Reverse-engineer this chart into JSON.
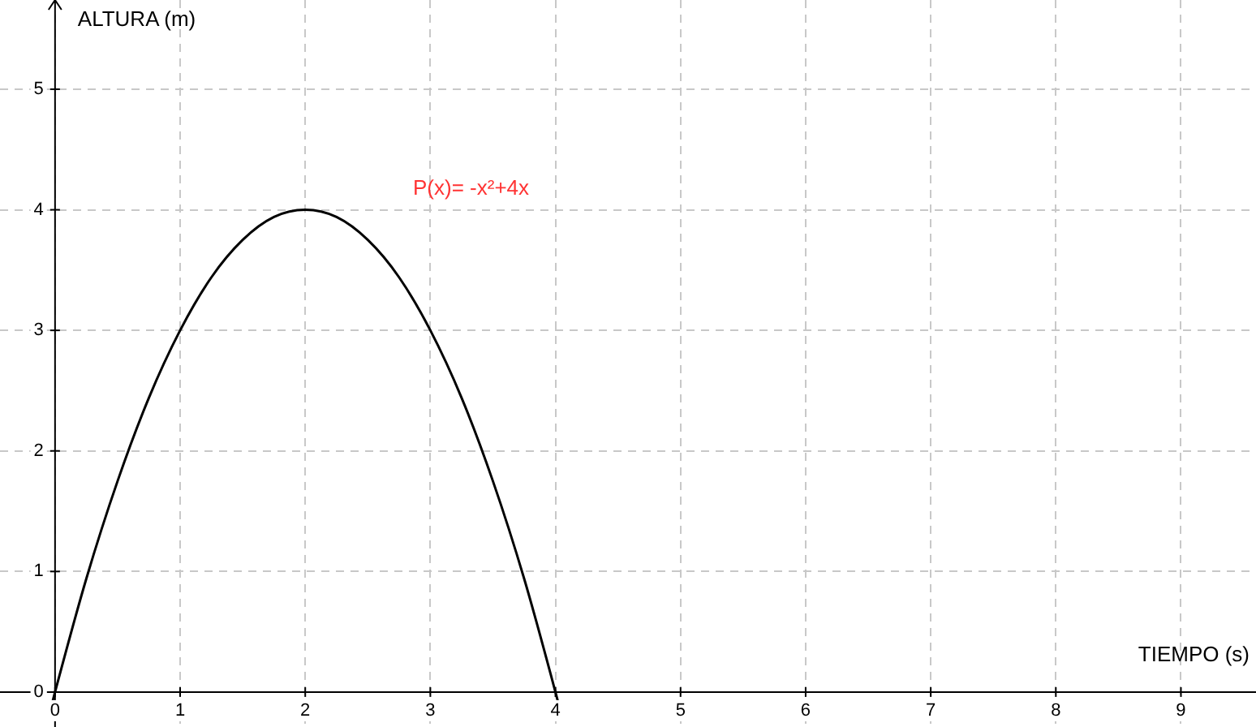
{
  "chart_data": {
    "type": "line",
    "xlabel": "TIEMPO (s)",
    "ylabel": "ALTURA (m)",
    "x": [
      -0.05,
      0,
      0.25,
      0.5,
      0.75,
      1,
      1.25,
      1.5,
      1.75,
      2,
      2.25,
      2.5,
      2.75,
      3,
      3.25,
      3.5,
      3.75,
      4,
      4.05
    ],
    "series": [
      {
        "color": "#000000",
        "values": [
          -0.2,
          0,
          0.94,
          1.75,
          2.44,
          3,
          3.44,
          3.75,
          3.94,
          4,
          3.94,
          3.75,
          3.44,
          3,
          2.44,
          1.75,
          0.94,
          0,
          -0.2
        ]
      }
    ],
    "annotations": [
      "P(x)= -x²+4x"
    ],
    "xlim": [
      -0.44,
      9.6
    ],
    "ylim": [
      -0.29,
      5.74
    ],
    "xticks": [
      0,
      1,
      2,
      3,
      4,
      5,
      6,
      7,
      8,
      9
    ],
    "yticks": [
      0,
      1,
      2,
      3,
      4,
      5
    ],
    "grid": true,
    "marker": "none",
    "line_style": "solid"
  }
}
